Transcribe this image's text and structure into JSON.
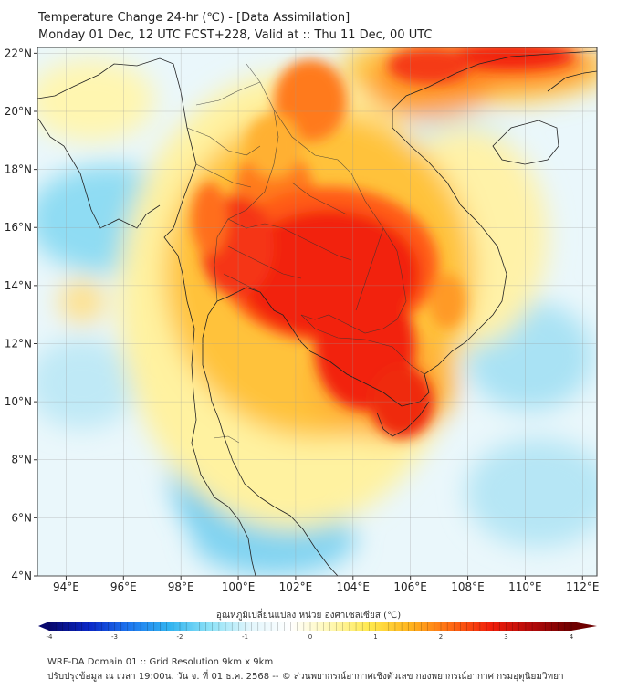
{
  "header": {
    "title_line1": "Temperature Change 24-hr (℃) - [Data Assimilation]",
    "title_line2": "Monday 01 Dec, 12 UTC FCST+228, Valid at :: Thu 11 Dec, 00 UTC"
  },
  "map": {
    "lat_ticks": [
      "22°N",
      "20°N",
      "18°N",
      "16°N",
      "14°N",
      "12°N",
      "10°N",
      "8°N",
      "6°N",
      "4°N"
    ],
    "lon_ticks": [
      "94°E",
      "96°E",
      "98°E",
      "100°E",
      "102°E",
      "104°E",
      "106°E",
      "108°E",
      "110°E",
      "112°E"
    ],
    "lon_range": [
      93.0,
      112.5
    ],
    "lat_range": [
      4.0,
      22.2
    ]
  },
  "colorbar": {
    "title": "อุณหภูมิเปลี่ยนแปลง หน่วย องศาเซลเซียส (℃)",
    "ticks": [
      "-4",
      "-3",
      "-2",
      "-1",
      "0",
      "1",
      "2",
      "3",
      "4"
    ],
    "min": -4,
    "max": 4,
    "colors": [
      "#08086e",
      "#0a28c8",
      "#1e78f0",
      "#32b4f0",
      "#8ee2f7",
      "#e2f6fc",
      "#ffffff",
      "#fff8b4",
      "#ffe84a",
      "#ffb31e",
      "#ff6a14",
      "#f01e0a",
      "#b40a0a",
      "#6e0000"
    ]
  },
  "footer": {
    "line1": "WRF-DA Domain 01 :: Grid Resolution 9km x 9km",
    "line2": "ปรับปรุงข้อมูล ณ เวลา 19:00น. วัน จ. ที่ 01 ธ.ค. 2568 -- © ส่วนพยากรณ์อากาศเชิงตัวเลข กองพยากรณ์อากาศ กรมอุตุนิยมวิทยา"
  }
}
